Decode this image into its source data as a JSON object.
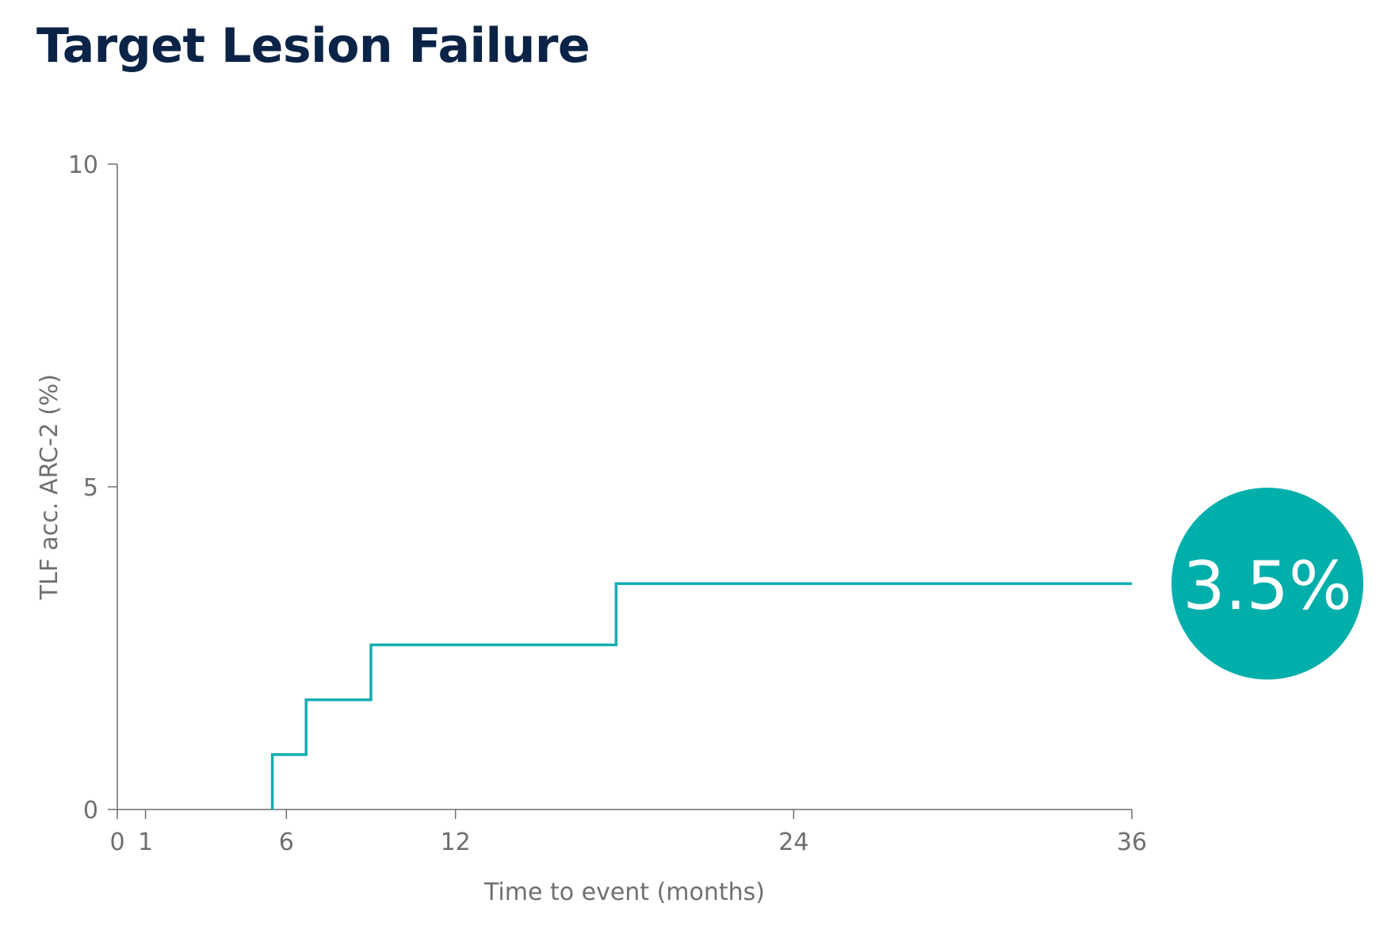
{
  "chart_data": {
    "type": "line",
    "step": true,
    "title": "Target Lesion Failure",
    "xlabel": "Time to event (months)",
    "ylabel": "TLF acc. ARC-2 (%)",
    "xlim": [
      0,
      36
    ],
    "ylim": [
      0,
      10
    ],
    "xticks": [
      0,
      1,
      6,
      12,
      24,
      36
    ],
    "yticks": [
      0,
      5,
      10
    ],
    "grid": false,
    "series": [
      {
        "x": [
          5.5,
          5.5,
          6.7,
          6.7,
          9.0,
          9.0,
          17.7,
          17.7,
          36
        ],
        "y": [
          0,
          0.85,
          0.85,
          1.7,
          1.7,
          2.55,
          2.55,
          3.5,
          3.5
        ]
      }
    ],
    "annotation": {
      "text": "3.5%",
      "value": 3.5
    },
    "colors": {
      "line": "#12aeb0",
      "badge": "#00aeaa",
      "title": "#0b2346",
      "axis": "#6f6f6f"
    }
  }
}
